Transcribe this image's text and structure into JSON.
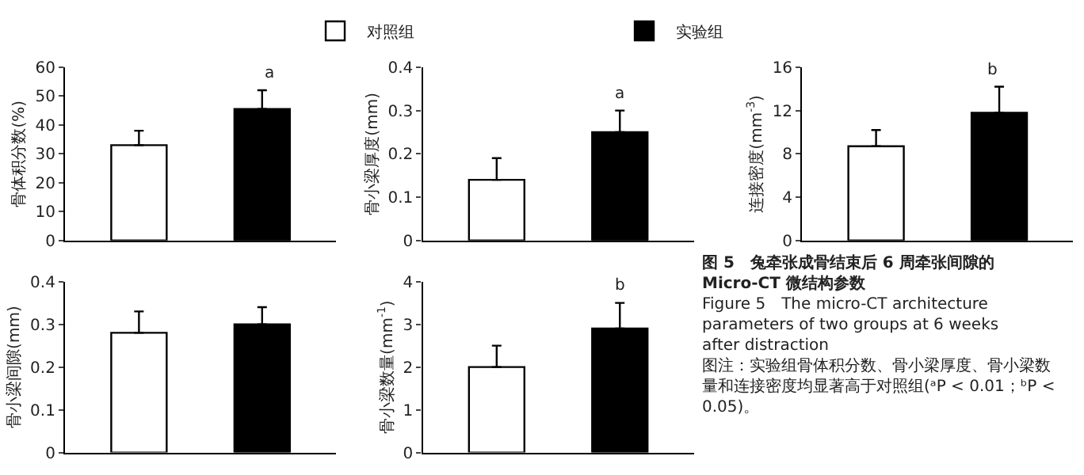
{
  "chart_data": [
    {
      "type": "bar",
      "categories": [
        null,
        null
      ],
      "ylabel": "骨体积分数(%)",
      "ylim": [
        0,
        60
      ],
      "yticks": [
        0,
        10,
        20,
        30,
        40,
        50,
        60
      ],
      "legend": "top",
      "annotations": [
        "a"
      ],
      "series": [
        {
          "name": "对照组",
          "color": "#ffffff",
          "values": [
            33,
            null
          ],
          "errors": [
            [
              33,
              38
            ],
            null
          ]
        },
        {
          "name": "实验组",
          "color": "#000000",
          "values": [
            null,
            45.5
          ],
          "errors": [
            null,
            [
              45.5,
              52
            ]
          ]
        }
      ]
    },
    {
      "type": "bar",
      "categories": [
        null,
        null
      ],
      "ylabel": "骨小梁厚度(mm)",
      "ylim": [
        0,
        0.4
      ],
      "yticks": [
        0,
        0.1,
        0.2,
        0.3,
        0.4
      ],
      "annotations": [
        "a"
      ],
      "series": [
        {
          "color": "#ffffff",
          "values": [
            0.14,
            null
          ],
          "errors": [
            [
              0.14,
              0.19
            ],
            null
          ]
        },
        {
          "color": "#000000",
          "values": [
            null,
            0.25
          ],
          "errors": [
            null,
            [
              0.25,
              0.3
            ]
          ]
        }
      ]
    },
    {
      "type": "bar",
      "categories": [
        null,
        null
      ],
      "ylabel": "连接密度(mm$^{-3}$)",
      "ylim": [
        0,
        16
      ],
      "yticks": [
        0,
        4,
        8,
        12,
        16
      ],
      "annotations": [
        "b"
      ],
      "series": [
        {
          "color": "#ffffff",
          "values": [
            8.7,
            null
          ],
          "errors": [
            [
              8.7,
              10.2
            ],
            null
          ]
        },
        {
          "color": "#000000",
          "values": [
            null,
            11.8
          ],
          "errors": [
            null,
            [
              11.8,
              14.2
            ]
          ]
        }
      ]
    },
    {
      "type": "bar",
      "categories": [
        null,
        null
      ],
      "ylabel": "骨小梁间隙(mm)",
      "ylim": [
        0,
        0.4
      ],
      "yticks": [
        0,
        0.1,
        0.2,
        0.3,
        0.4
      ],
      "series": [
        {
          "color": "#ffffff",
          "values": [
            0.28,
            null
          ],
          "errors": [
            [
              0.28,
              0.33
            ],
            null
          ]
        },
        {
          "color": "#000000",
          "values": [
            null,
            0.3
          ],
          "errors": [
            null,
            [
              0.3,
              0.34
            ]
          ]
        }
      ]
    },
    {
      "type": "bar",
      "categories": [
        null,
        null
      ],
      "ylabel": "骨小梁数量(mm$^{-1}$)",
      "ylim": [
        0,
        4
      ],
      "yticks": [
        0,
        1,
        2,
        3,
        4
      ],
      "annotations": [
        "b"
      ],
      "series": [
        {
          "color": "#ffffff",
          "values": [
            2.0,
            null
          ],
          "errors": [
            [
              2.0,
              2.5
            ],
            null
          ]
        },
        {
          "color": "#000000",
          "values": [
            null,
            2.9
          ],
          "errors": [
            null,
            [
              2.9,
              3.5
            ]
          ]
        }
      ]
    },
    {
      "type": "other",
      "title": "图 5　兔牵张成骨结束后 6 周牵张间隙的 Micro-CT 微结构参数",
      "subtitle": "Figure 5　The micro-CT architecture parameters of two groups at 6 weeks after distraction",
      "annotations": [
        "图注：实验组骨体积分数、骨小梁厚度、骨小梁数量和连接密度均显著高于对照组(ᵃP < 0.01；ᵇP < 0.05)。"
      ]
    }
  ]
}
